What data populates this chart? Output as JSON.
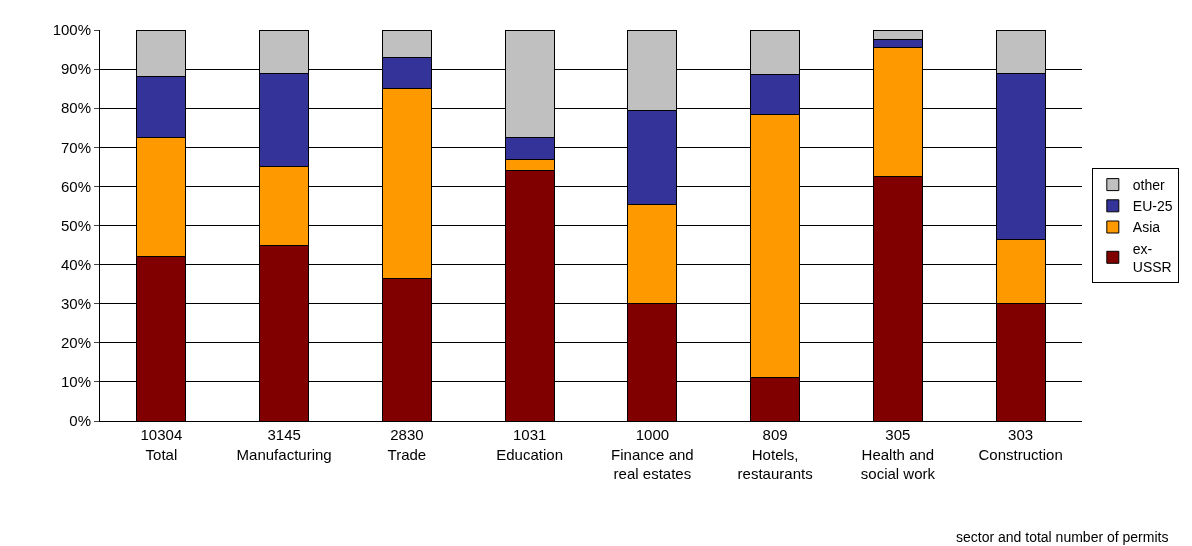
{
  "chart_data": {
    "type": "bar",
    "stacked": true,
    "xlabel": "sector and total number of permits",
    "categories": [
      "10304\nTotal",
      "3145\nManufacturing",
      "2830\nTrade",
      "1031\nEducation",
      "1000\nFinance and\nreal estates",
      "809\nHotels,\nrestaurants",
      "305\nHealth and\nsocial work",
      "303\nConstruction"
    ],
    "series": [
      {
        "name": "ex-\nUSSR",
        "color": "#800000",
        "values": [
          42,
          45,
          36.5,
          64,
          30,
          11,
          62.5,
          30
        ]
      },
      {
        "name": "Asia",
        "color": "#ff9900",
        "values": [
          30.5,
          20,
          48.5,
          3,
          25.5,
          67.5,
          33,
          16.5
        ]
      },
      {
        "name": "EU-25",
        "color": "#333399",
        "values": [
          15.5,
          24,
          8,
          5.5,
          24,
          10,
          2,
          42.5
        ]
      },
      {
        "name": "other",
        "color": "#c0c0c0",
        "values": [
          12,
          11,
          7,
          27.5,
          20.5,
          11.5,
          2.5,
          11
        ]
      }
    ],
    "ylim": [
      0,
      100
    ],
    "yticks": [
      {
        "value": 0,
        "label": "0%"
      },
      {
        "value": 10,
        "label": "10%"
      },
      {
        "value": 20,
        "label": "20%"
      },
      {
        "value": 30,
        "label": "30%"
      },
      {
        "value": 40,
        "label": "40%"
      },
      {
        "value": 50,
        "label": "50%"
      },
      {
        "value": 60,
        "label": "60%"
      },
      {
        "value": 70,
        "label": "70%"
      },
      {
        "value": 80,
        "label": "80%"
      },
      {
        "value": 90,
        "label": "90%"
      },
      {
        "value": 100,
        "label": "100%"
      }
    ],
    "grid": "y",
    "legend": "right"
  }
}
